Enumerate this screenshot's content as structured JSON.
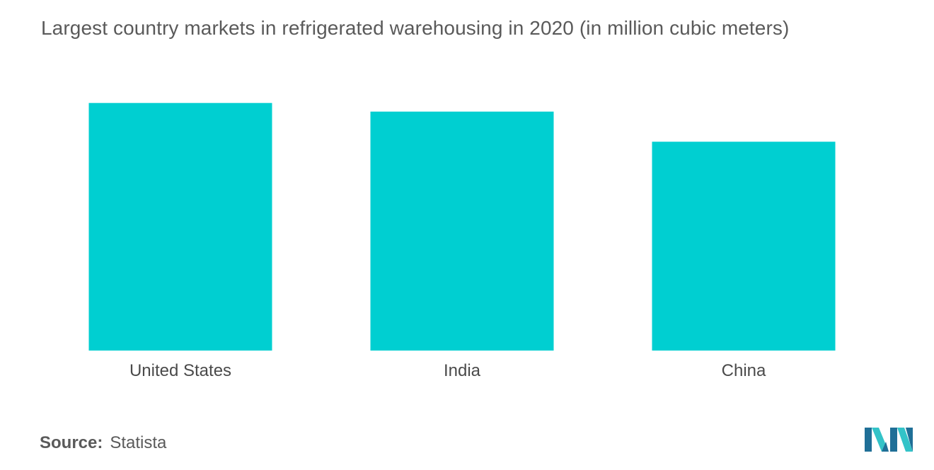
{
  "chart_data": {
    "type": "bar",
    "title": "Largest country markets in refrigerated warehousing in 2020 (in million cubic meters)",
    "categories": [
      "United States",
      "India",
      "China"
    ],
    "values": [
      115,
      111,
      97
    ],
    "xlabel": "",
    "ylabel": "",
    "ylim": [
      0,
      130
    ],
    "grid": false,
    "legend": "none",
    "colors": {
      "bar": "#00cfd1",
      "text": "#4a4a4a"
    }
  },
  "footer": {
    "source_label": "Source:",
    "source_value": "Statista"
  },
  "logo": {
    "icon": "mordor-intelligence-logo",
    "colors": [
      "#1f6f97",
      "#33c3c8"
    ]
  }
}
